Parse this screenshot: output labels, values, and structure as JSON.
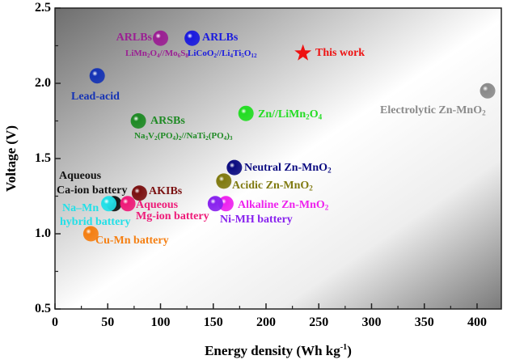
{
  "chart_data": {
    "type": "scatter",
    "title": "",
    "xlabel": "Energy density (Wh kg-1)",
    "ylabel": "Voltage (V)",
    "xlim": [
      0,
      423
    ],
    "ylim": [
      0.5,
      2.5
    ],
    "xticks": [
      "0",
      "50",
      "100",
      "150",
      "200",
      "250",
      "300",
      "350",
      "400"
    ],
    "yticks": [
      "0.5",
      "1.0",
      "1.5",
      "2.0",
      "2.5"
    ],
    "grid": false,
    "background": "diagonal gray-white gradient",
    "points": [
      {
        "name": "ARLBs",
        "lines": [
          "ARLBs",
          "LiMn2O4//Mo6S8"
        ],
        "x": 100,
        "y": 2.3,
        "color": "#9b1f93",
        "marker": "sphere"
      },
      {
        "name": "ARLBs",
        "lines": [
          "ARLBs",
          "LiCoO2//Li4Ti5O12"
        ],
        "x": 130,
        "y": 2.3,
        "color": "#1a1adf",
        "marker": "sphere"
      },
      {
        "name": "This work",
        "lines": [
          "This work"
        ],
        "x": 235,
        "y": 2.2,
        "color": "#ee1111",
        "marker": "star"
      },
      {
        "name": "Lead-acid",
        "lines": [
          "Lead-acid"
        ],
        "x": 40,
        "y": 2.05,
        "color": "#1533b5",
        "marker": "sphere"
      },
      {
        "name": "Electrolytic Zn-MnO2",
        "lines": [
          "Electrolytic Zn-MnO2"
        ],
        "x": 410,
        "y": 1.95,
        "color": "#8a8a8a",
        "marker": "sphere"
      },
      {
        "name": "ARSBs",
        "lines": [
          "ARSBs",
          "Na3V2(PO4)2//NaTi2(PO4)3"
        ],
        "x": 79,
        "y": 1.75,
        "color": "#1e8a24",
        "marker": "sphere"
      },
      {
        "name": "Zn//LiMn2O4",
        "lines": [
          "Zn//LiMn2O4"
        ],
        "x": 181,
        "y": 1.8,
        "color": "#22dd22",
        "marker": "sphere"
      },
      {
        "name": "Neutral Zn-MnO2",
        "lines": [
          "Neutral Zn-MnO2"
        ],
        "x": 170,
        "y": 1.44,
        "color": "#0b0b80",
        "marker": "sphere"
      },
      {
        "name": "Acidic Zn-MnO2",
        "lines": [
          "Acidic Zn-MnO2"
        ],
        "x": 160,
        "y": 1.35,
        "color": "#807a10",
        "marker": "sphere"
      },
      {
        "name": "AKIBs",
        "lines": [
          "AKIBs"
        ],
        "x": 80,
        "y": 1.27,
        "color": "#7a1010",
        "marker": "sphere"
      },
      {
        "name": "Aqueous Ca-ion battery",
        "lines": [
          "Aqueous",
          "Ca-ion battery"
        ],
        "x": 56,
        "y": 1.2,
        "color": "#111111",
        "marker": "sphere"
      },
      {
        "name": "Na–Mn hybrid battery",
        "lines": [
          "Na–Mn",
          "hybrid battery"
        ],
        "x": 51,
        "y": 1.2,
        "color": "#22e0e8",
        "marker": "sphere"
      },
      {
        "name": "Aqueous Mg-ion battery",
        "lines": [
          "Aqueous",
          "Mg-ion battery"
        ],
        "x": 69,
        "y": 1.2,
        "color": "#ee1a78",
        "marker": "sphere"
      },
      {
        "name": "Alkaline Zn-MnO2",
        "lines": [
          "Alkaline Zn-MnO2"
        ],
        "x": 162,
        "y": 1.2,
        "color": "#ee22ee",
        "marker": "sphere"
      },
      {
        "name": "Ni-MH battery",
        "lines": [
          "Ni-MH battery"
        ],
        "x": 152,
        "y": 1.2,
        "color": "#8822ee",
        "marker": "sphere"
      },
      {
        "name": "Cu-Mn battery",
        "lines": [
          "Cu-Mn battery"
        ],
        "x": 34,
        "y": 1.0,
        "color": "#f57f12",
        "marker": "sphere"
      }
    ]
  }
}
